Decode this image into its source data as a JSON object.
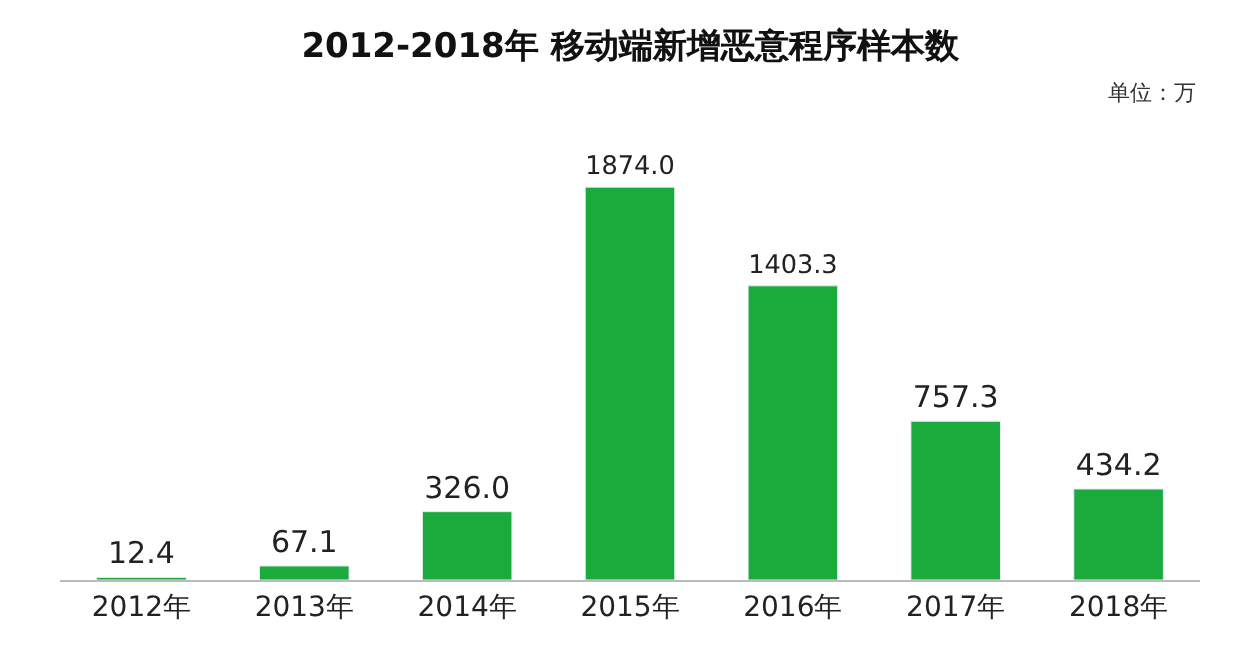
{
  "chart_data": {
    "type": "bar",
    "title": "2012-2018年 移动端新增恶意程序样本数",
    "annotations": [
      "单位：万"
    ],
    "categories": [
      "2012年",
      "2013年",
      "2014年",
      "2015年",
      "2016年",
      "2017年",
      "2018年"
    ],
    "values": [
      12.4,
      67.1,
      326.0,
      1874.0,
      1403.3,
      757.3,
      434.2
    ],
    "value_labels": [
      "12.4",
      "67.1",
      "326.0",
      "1874.0",
      "1403.3",
      "757.3",
      "434.2"
    ],
    "color": "#1aab3c"
  }
}
